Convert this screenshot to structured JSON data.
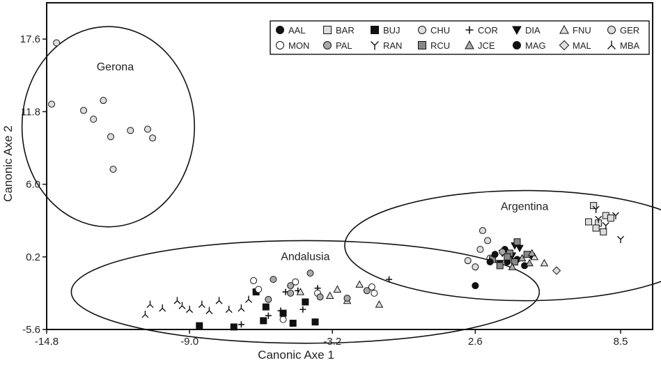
{
  "chart_data": {
    "type": "scatter",
    "xlabel": "Canonic Axe 1",
    "ylabel": "Canonic Axe 2",
    "xlim": [
      -14.8,
      9.8
    ],
    "ylim": [
      -5.6,
      20.5
    ],
    "xticks": [
      "-14.8",
      "-9.0",
      "-3.2",
      "2.6",
      "8.5"
    ],
    "yticks": [
      "17.6",
      "11.8",
      "6.0",
      "0.2",
      "-5.6"
    ],
    "legend_position": "top-right",
    "clusters": [
      {
        "label": "Gerona",
        "center": [
          -12.3,
          10.6
        ],
        "radius": [
          3.5,
          8.0
        ]
      },
      {
        "label": "Andalusia",
        "center": [
          -4.3,
          -2.6
        ],
        "radius": [
          9.5,
          4.1
        ]
      },
      {
        "label": "Argentina",
        "center": [
          4.6,
          1.1
        ],
        "radius": [
          7.3,
          4.4
        ]
      }
    ],
    "series": [
      {
        "name": "AAL",
        "marker": "circle",
        "fill": "#111111",
        "x": [
          3.8,
          4.3,
          4.6,
          2.6,
          3.9,
          4.9
        ],
        "y": [
          0.8,
          0.0,
          -0.5,
          -2.1,
          -0.2,
          0.3
        ]
      },
      {
        "name": "BAR",
        "marker": "square",
        "fill": "#dddddd",
        "x": [
          7.4,
          7.9,
          7.6,
          8.1,
          7.2,
          7.8,
          7.5
        ],
        "y": [
          4.3,
          3.5,
          2.9,
          3.3,
          3.0,
          2.2,
          2.5
        ]
      },
      {
        "name": "BUJ",
        "marker": "square",
        "fill": "#111111",
        "x": [
          -8.6,
          -7.2,
          -6.0,
          -6.3,
          -5.2,
          -4.8,
          -4.3,
          -3.9,
          -5.9
        ],
        "y": [
          -5.3,
          -5.4,
          -4.9,
          -2.6,
          -4.3,
          -5.1,
          -3.4,
          -5.0,
          -3.8
        ]
      },
      {
        "name": "CHU",
        "marker": "circle",
        "fill": "#dddddd",
        "x": [
          2.3,
          2.6,
          2.8,
          3.1,
          2.9
        ],
        "y": [
          -0.1,
          -0.6,
          0.8,
          1.5,
          2.3
        ]
      },
      {
        "name": "COR",
        "marker": "plus",
        "fill": "#111111",
        "x": [
          -6.9,
          -5.8,
          -5.3,
          -5.1,
          -4.6,
          -4.4,
          -3.8,
          -0.9
        ],
        "y": [
          -5.2,
          -4.5,
          -4.1,
          -2.6,
          -2.5,
          -4.0,
          -2.3,
          -1.6
        ]
      },
      {
        "name": "DIA",
        "marker": "triangle-down",
        "fill": "#111111",
        "x": [
          3.7,
          4.1,
          4.4,
          3.6,
          4.2
        ],
        "y": [
          0.5,
          0.3,
          0.9,
          -0.3,
          1.1
        ]
      },
      {
        "name": "FNU",
        "marker": "triangle-up",
        "fill": "#dddddd",
        "x": [
          -4.5,
          -3.3,
          -3.0,
          -2.6,
          -2.1,
          -1.3,
          5.4,
          5.0
        ],
        "y": [
          -2.6,
          -2.9,
          -2.4,
          -3.3,
          -2.0,
          -3.6,
          -0.3,
          0.2
        ]
      },
      {
        "name": "GER",
        "marker": "circle",
        "fill": "#dddddd",
        "x": [
          -14.4,
          -14.6,
          -13.3,
          -12.9,
          -12.5,
          -12.2,
          -12.1,
          -11.4,
          -10.7,
          -10.5
        ],
        "y": [
          17.3,
          12.4,
          11.9,
          11.2,
          12.7,
          9.8,
          7.2,
          10.3,
          10.4,
          9.7
        ]
      },
      {
        "name": "MON",
        "marker": "circle",
        "fill": "#ffffff",
        "x": [
          -6.4,
          -4.7,
          -3.8,
          -5.2,
          -6.2,
          -1.6,
          -1.5,
          3.2
        ],
        "y": [
          -1.7,
          -1.8,
          -2.7,
          -4.8,
          -2.4,
          -2.2,
          -2.7,
          0.1
        ]
      },
      {
        "name": "PAL",
        "marker": "circle",
        "fill": "#aaaaaa",
        "x": [
          -5.8,
          -5.6,
          -4.9,
          -4.1,
          -3.7,
          -2.6,
          -1.8,
          -4.9,
          3.7
        ],
        "y": [
          -3.2,
          -1.6,
          -2.1,
          -1.1,
          -3.0,
          -3.1,
          -2.5,
          -2.7,
          0.6
        ]
      },
      {
        "name": "RAN",
        "marker": "y",
        "fill": "#111111",
        "x": [
          7.5,
          7.6,
          7.9,
          8.3,
          8.5
        ],
        "y": [
          4.0,
          3.2,
          2.7,
          3.5,
          1.6
        ]
      },
      {
        "name": "RCU",
        "marker": "square",
        "fill": "#888888",
        "x": [
          3.3,
          3.6,
          4.0,
          4.3,
          3.9,
          4.7,
          4.2
        ],
        "y": [
          0.0,
          -0.5,
          0.5,
          1.4,
          0.2,
          0.4,
          -0.2
        ]
      },
      {
        "name": "JCE",
        "marker": "triangle-up",
        "fill": "#aaaaaa",
        "x": [
          4.5,
          4.8,
          4.9,
          4.1
        ],
        "y": [
          0.1,
          -0.3,
          0.5,
          -0.6
        ]
      },
      {
        "name": "MAG",
        "marker": "circle",
        "fill": "#111111",
        "x": [
          2.6,
          3.4,
          3.2
        ],
        "y": [
          -2.1,
          0.4,
          -0.2
        ]
      },
      {
        "name": "MAL",
        "marker": "diamond",
        "fill": "#dddddd",
        "x": [
          5.9
        ],
        "y": [
          -0.9
        ]
      },
      {
        "name": "MBA",
        "marker": "lambda",
        "fill": "#111111",
        "x": [
          -10.6,
          -10.1,
          -9.5,
          -9.0,
          -8.5,
          -8.2,
          -7.8,
          -7.4,
          -6.9,
          -6.6,
          -10.8,
          -9.3
        ],
        "y": [
          -3.6,
          -3.9,
          -3.3,
          -4.0,
          -3.6,
          -4.1,
          -3.3,
          -4.0,
          -3.9,
          -3.2,
          -4.4,
          -3.7
        ]
      }
    ]
  }
}
